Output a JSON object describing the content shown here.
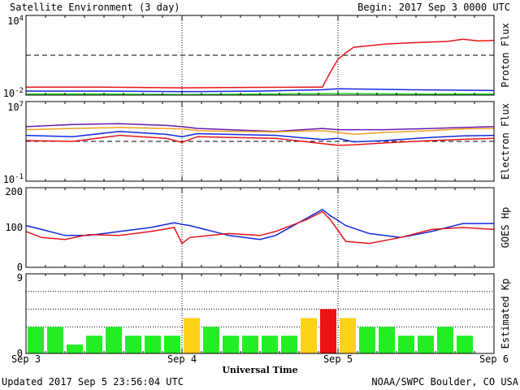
{
  "header": {
    "title": "Satellite Environment (3 day)",
    "begin": "Begin:  2017 Sep 3 0000 UTC"
  },
  "footer": {
    "updated": "Updated 2017 Sep  5 23:56:04 UTC",
    "credit": "NOAA/SWPC Boulder, CO USA"
  },
  "xaxis": {
    "title": "Universal Time",
    "ticks": [
      "Sep 3",
      "Sep 4",
      "Sep 5",
      "Sep 6"
    ]
  },
  "colors": {
    "red": "#e8141b",
    "blue": "#1428e0",
    "green": "#28e028",
    "purple": "#6a1ab0",
    "orange": "#f0a020",
    "kp_green": "#22ee22",
    "kp_yellow": "#ffd21a",
    "kp_red": "#ee1111"
  },
  "chart_data": [
    {
      "type": "line",
      "name_label": "Proton Flux",
      "yscale": "log",
      "ylim": [
        0.01,
        10000
      ],
      "ytick_labels": [
        {
          "base": "10",
          "exp": "4"
        },
        {
          "base": "10",
          "exp": "-2"
        }
      ],
      "threshold": 10,
      "x_unit": "days since Sep 3 0000 UTC",
      "series": [
        {
          "color_key": "red",
          "x": [
            0,
            0.5,
            1.0,
            1.5,
            1.9,
            1.95,
            2.0,
            2.05,
            2.1,
            2.3,
            2.5,
            2.7,
            2.8,
            2.9,
            3.0
          ],
          "y": [
            0.04,
            0.04,
            0.035,
            0.038,
            0.04,
            0.5,
            5,
            15,
            40,
            70,
            90,
            110,
            160,
            120,
            130
          ]
        },
        {
          "color_key": "blue",
          "x": [
            0,
            0.5,
            1.0,
            1.5,
            1.9,
            2.0,
            2.5,
            3.0
          ],
          "y": [
            0.02,
            0.02,
            0.018,
            0.02,
            0.025,
            0.03,
            0.025,
            0.022
          ]
        },
        {
          "color_key": "green",
          "x": [
            0,
            0.5,
            1.0,
            1.5,
            2.0,
            2.5,
            3.0
          ],
          "y": [
            0.012,
            0.012,
            0.011,
            0.012,
            0.013,
            0.012,
            0.012
          ]
        }
      ]
    },
    {
      "type": "line",
      "name_label": "Electron Flux",
      "yscale": "log",
      "ylim": [
        0.1,
        10000000
      ],
      "ytick_labels": [
        {
          "base": "10",
          "exp": "7"
        },
        {
          "base": "10",
          "exp": "-1"
        }
      ],
      "threshold": 1000,
      "x_unit": "days since Sep 3 0000 UTC",
      "series": [
        {
          "color_key": "purple",
          "x": [
            0,
            0.3,
            0.6,
            0.9,
            1.0,
            1.1,
            1.3,
            1.6,
            1.9,
            2.0,
            2.1,
            2.3,
            2.6,
            2.8,
            3.0
          ],
          "y": [
            30000,
            50000,
            60000,
            40000,
            30000,
            20000,
            15000,
            10000,
            20000,
            15000,
            15000,
            15000,
            20000,
            25000,
            30000
          ]
        },
        {
          "color_key": "orange",
          "x": [
            0,
            0.3,
            0.6,
            0.9,
            1.0,
            1.1,
            1.3,
            1.6,
            1.9,
            2.0,
            2.1,
            2.3,
            2.6,
            2.8,
            3.0
          ],
          "y": [
            15000,
            20000,
            25000,
            20000,
            18000,
            12000,
            10000,
            9000,
            12000,
            8000,
            5000,
            8000,
            12000,
            18000,
            20000
          ]
        },
        {
          "color_key": "blue",
          "x": [
            0,
            0.3,
            0.6,
            0.9,
            1.0,
            1.1,
            1.3,
            1.6,
            1.9,
            2.0,
            2.1,
            2.3,
            2.6,
            2.8,
            3.0
          ],
          "y": [
            4000,
            3000,
            10000,
            5000,
            3000,
            6000,
            5000,
            4000,
            1500,
            2000,
            900,
            1200,
            2500,
            3500,
            4000
          ]
        },
        {
          "color_key": "red",
          "x": [
            0,
            0.3,
            0.6,
            0.9,
            1.0,
            1.1,
            1.3,
            1.6,
            1.9,
            2.0,
            2.1,
            2.3,
            2.6,
            2.8,
            3.0
          ],
          "y": [
            1200,
            1000,
            4000,
            2000,
            800,
            3000,
            2500,
            2000,
            600,
            400,
            450,
            700,
            1200,
            1600,
            2000
          ]
        }
      ]
    },
    {
      "type": "line",
      "name_label": "GOES Hp",
      "yscale": "linear",
      "ylim": [
        0,
        200
      ],
      "ytick_labels": [
        "200",
        "100",
        "0"
      ],
      "x_unit": "days since Sep 3 0000 UTC",
      "series": [
        {
          "color_key": "blue",
          "x": [
            0,
            0.1,
            0.25,
            0.4,
            0.6,
            0.8,
            0.95,
            1.0,
            1.05,
            1.3,
            1.5,
            1.6,
            1.9,
            1.95,
            2.05,
            2.2,
            2.4,
            2.6,
            2.8,
            3.0
          ],
          "y": [
            105,
            95,
            80,
            80,
            90,
            100,
            112,
            108,
            105,
            80,
            70,
            80,
            145,
            130,
            105,
            85,
            75,
            90,
            110,
            110
          ]
        },
        {
          "color_key": "red",
          "x": [
            0,
            0.1,
            0.25,
            0.4,
            0.6,
            0.8,
            0.95,
            1.0,
            1.05,
            1.3,
            1.5,
            1.6,
            1.8,
            1.9,
            1.95,
            2.05,
            2.2,
            2.4,
            2.6,
            2.8,
            3.0
          ],
          "y": [
            90,
            75,
            70,
            82,
            80,
            90,
            100,
            60,
            75,
            85,
            80,
            90,
            120,
            140,
            120,
            65,
            60,
            75,
            95,
            100,
            95
          ]
        }
      ]
    },
    {
      "type": "bar",
      "name_label": "Estimated Kp",
      "ylim": [
        0,
        9
      ],
      "ytick_labels": [
        "9",
        "0"
      ],
      "x_unit": "3-hour intervals starting Sep 3 0000 UTC",
      "values": [
        3,
        3,
        1,
        2,
        3,
        2,
        2,
        2,
        4,
        3,
        2,
        2,
        2,
        2,
        4,
        5,
        4,
        3,
        3,
        2,
        2,
        3,
        2,
        0
      ],
      "colors": [
        "kp_green",
        "kp_green",
        "kp_green",
        "kp_green",
        "kp_green",
        "kp_green",
        "kp_green",
        "kp_green",
        "kp_yellow",
        "kp_green",
        "kp_green",
        "kp_green",
        "kp_green",
        "kp_green",
        "kp_yellow",
        "kp_red",
        "kp_yellow",
        "kp_green",
        "kp_green",
        "kp_green",
        "kp_green",
        "kp_green",
        "kp_green",
        "kp_green"
      ]
    }
  ]
}
